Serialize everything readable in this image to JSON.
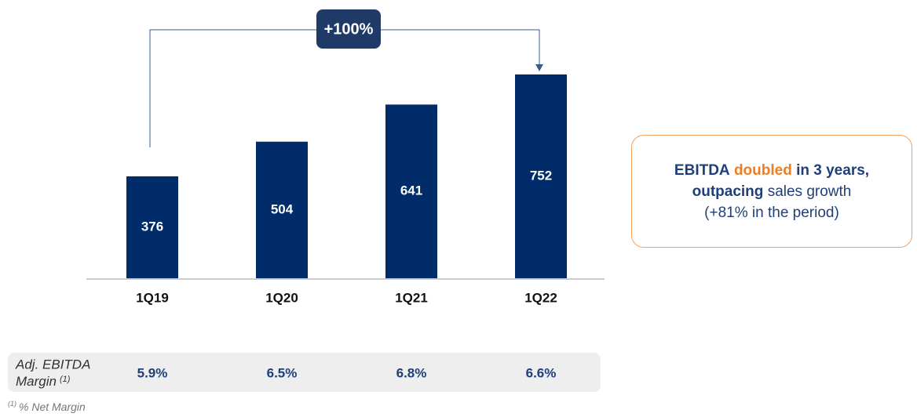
{
  "chart_data": {
    "type": "bar",
    "categories": [
      "1Q19",
      "1Q20",
      "1Q21",
      "1Q22"
    ],
    "values": [
      376,
      504,
      641,
      752
    ],
    "color": "#002d6a",
    "annotation": "+100%",
    "callout": {
      "line1": [
        "EBITDA",
        "doubled",
        "in 3 years,"
      ],
      "line2": [
        "outpacing",
        "sales growth"
      ],
      "line3": "(+81% in the period)"
    },
    "margin": {
      "label1": "Adj. EBITDA",
      "label2": "Margin",
      "label_note": "(1)",
      "values": [
        "5.9%",
        "6.5%",
        "6.8%",
        "6.6%"
      ]
    },
    "footnote": {
      "mark": "(1)",
      "text": "% Net Margin"
    }
  }
}
